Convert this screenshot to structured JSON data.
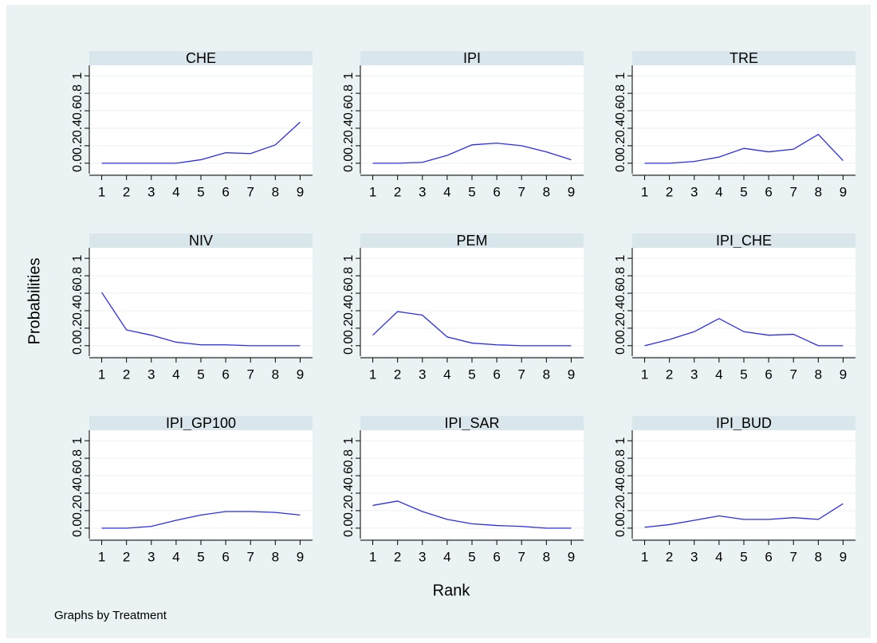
{
  "ylabel": "Probabilities",
  "xlabel": "Rank",
  "note": "Graphs by Treatment",
  "chart_data": [
    {
      "type": "line",
      "title": "CHE",
      "x": [
        1,
        2,
        3,
        4,
        5,
        6,
        7,
        8,
        9
      ],
      "values": [
        0,
        0,
        0,
        0,
        0.04,
        0.12,
        0.11,
        0.21,
        0.47
      ],
      "color": "#2b2bf0",
      "xlim": [
        0.5,
        9.5
      ],
      "ylim": [
        -0.12,
        1.12
      ],
      "xticks": [
        1,
        2,
        3,
        4,
        5,
        6,
        7,
        8,
        9
      ],
      "yticks": [
        {
          "value": 0,
          "label": "0.0"
        },
        0.2,
        0.4,
        0.6,
        0.8,
        1
      ],
      "grid": true
    },
    {
      "type": "line",
      "title": "IPI",
      "x": [
        1,
        2,
        3,
        4,
        5,
        6,
        7,
        8,
        9
      ],
      "values": [
        0,
        0,
        0.01,
        0.09,
        0.21,
        0.23,
        0.2,
        0.13,
        0.04
      ],
      "color": "#2b2bf0",
      "xlim": [
        0.5,
        9.5
      ],
      "ylim": [
        -0.12,
        1.12
      ],
      "xticks": [
        1,
        2,
        3,
        4,
        5,
        6,
        7,
        8,
        9
      ],
      "yticks": [
        {
          "value": 0,
          "label": "0.0"
        },
        0.2,
        0.4,
        0.6,
        0.8,
        1
      ],
      "grid": true
    },
    {
      "type": "line",
      "title": "TRE",
      "x": [
        1,
        2,
        3,
        4,
        5,
        6,
        7,
        8,
        9
      ],
      "values": [
        0,
        0,
        0.02,
        0.07,
        0.17,
        0.13,
        0.16,
        0.33,
        0.03
      ],
      "color": "#2b2bf0",
      "xlim": [
        0.5,
        9.5
      ],
      "ylim": [
        -0.12,
        1.12
      ],
      "xticks": [
        1,
        2,
        3,
        4,
        5,
        6,
        7,
        8,
        9
      ],
      "yticks": [
        {
          "value": 0,
          "label": "0.0"
        },
        0.2,
        0.4,
        0.6,
        0.8,
        1
      ],
      "grid": true
    },
    {
      "type": "line",
      "title": "NIV",
      "x": [
        1,
        2,
        3,
        4,
        5,
        6,
        7,
        8,
        9
      ],
      "values": [
        0.61,
        0.18,
        0.12,
        0.04,
        0.01,
        0.01,
        0,
        0,
        0
      ],
      "color": "#2b2bf0",
      "xlim": [
        0.5,
        9.5
      ],
      "ylim": [
        -0.12,
        1.12
      ],
      "xticks": [
        1,
        2,
        3,
        4,
        5,
        6,
        7,
        8,
        9
      ],
      "yticks": [
        {
          "value": 0,
          "label": "0.0"
        },
        0.2,
        0.4,
        0.6,
        0.8,
        1
      ],
      "grid": true
    },
    {
      "type": "line",
      "title": "PEM",
      "x": [
        1,
        2,
        3,
        4,
        5,
        6,
        7,
        8,
        9
      ],
      "values": [
        0.12,
        0.39,
        0.35,
        0.1,
        0.03,
        0.01,
        0,
        0,
        0
      ],
      "color": "#2b2bf0",
      "xlim": [
        0.5,
        9.5
      ],
      "ylim": [
        -0.12,
        1.12
      ],
      "xticks": [
        1,
        2,
        3,
        4,
        5,
        6,
        7,
        8,
        9
      ],
      "yticks": [
        {
          "value": 0,
          "label": "0.0"
        },
        0.2,
        0.4,
        0.6,
        0.8,
        1
      ],
      "grid": true
    },
    {
      "type": "line",
      "title": "IPI_CHE",
      "x": [
        1,
        2,
        3,
        4,
        5,
        6,
        7,
        8,
        9
      ],
      "values": [
        0,
        0.07,
        0.16,
        0.31,
        0.16,
        0.12,
        0.13,
        0,
        0
      ],
      "color": "#2b2bf0",
      "xlim": [
        0.5,
        9.5
      ],
      "ylim": [
        -0.12,
        1.12
      ],
      "xticks": [
        1,
        2,
        3,
        4,
        5,
        6,
        7,
        8,
        9
      ],
      "yticks": [
        {
          "value": 0,
          "label": "0.0"
        },
        0.2,
        0.4,
        0.6,
        0.8,
        1
      ],
      "grid": true
    },
    {
      "type": "line",
      "title": "IPI_GP100",
      "x": [
        1,
        2,
        3,
        4,
        5,
        6,
        7,
        8,
        9
      ],
      "values": [
        0,
        0,
        0.02,
        0.09,
        0.15,
        0.19,
        0.19,
        0.18,
        0.15
      ],
      "color": "#2b2bf0",
      "xlim": [
        0.5,
        9.5
      ],
      "ylim": [
        -0.12,
        1.12
      ],
      "xticks": [
        1,
        2,
        3,
        4,
        5,
        6,
        7,
        8,
        9
      ],
      "yticks": [
        {
          "value": 0,
          "label": "0.0"
        },
        0.2,
        0.4,
        0.6,
        0.8,
        1
      ],
      "grid": true
    },
    {
      "type": "line",
      "title": "IPI_SAR",
      "x": [
        1,
        2,
        3,
        4,
        5,
        6,
        7,
        8,
        9
      ],
      "values": [
        0.26,
        0.31,
        0.19,
        0.1,
        0.05,
        0.03,
        0.02,
        0,
        0
      ],
      "color": "#2b2bf0",
      "xlim": [
        0.5,
        9.5
      ],
      "ylim": [
        -0.12,
        1.12
      ],
      "xticks": [
        1,
        2,
        3,
        4,
        5,
        6,
        7,
        8,
        9
      ],
      "yticks": [
        {
          "value": 0,
          "label": "0.0"
        },
        0.2,
        0.4,
        0.6,
        0.8,
        1
      ],
      "grid": true
    },
    {
      "type": "line",
      "title": "IPI_BUD",
      "x": [
        1,
        2,
        3,
        4,
        5,
        6,
        7,
        8,
        9
      ],
      "values": [
        0.01,
        0.04,
        0.09,
        0.14,
        0.1,
        0.1,
        0.12,
        0.1,
        0.28
      ],
      "color": "#2b2bf0",
      "xlim": [
        0.5,
        9.5
      ],
      "ylim": [
        -0.12,
        1.12
      ],
      "xticks": [
        1,
        2,
        3,
        4,
        5,
        6,
        7,
        8,
        9
      ],
      "yticks": [
        {
          "value": 0,
          "label": "0.0"
        },
        0.2,
        0.4,
        0.6,
        0.8,
        1
      ],
      "grid": true
    }
  ]
}
